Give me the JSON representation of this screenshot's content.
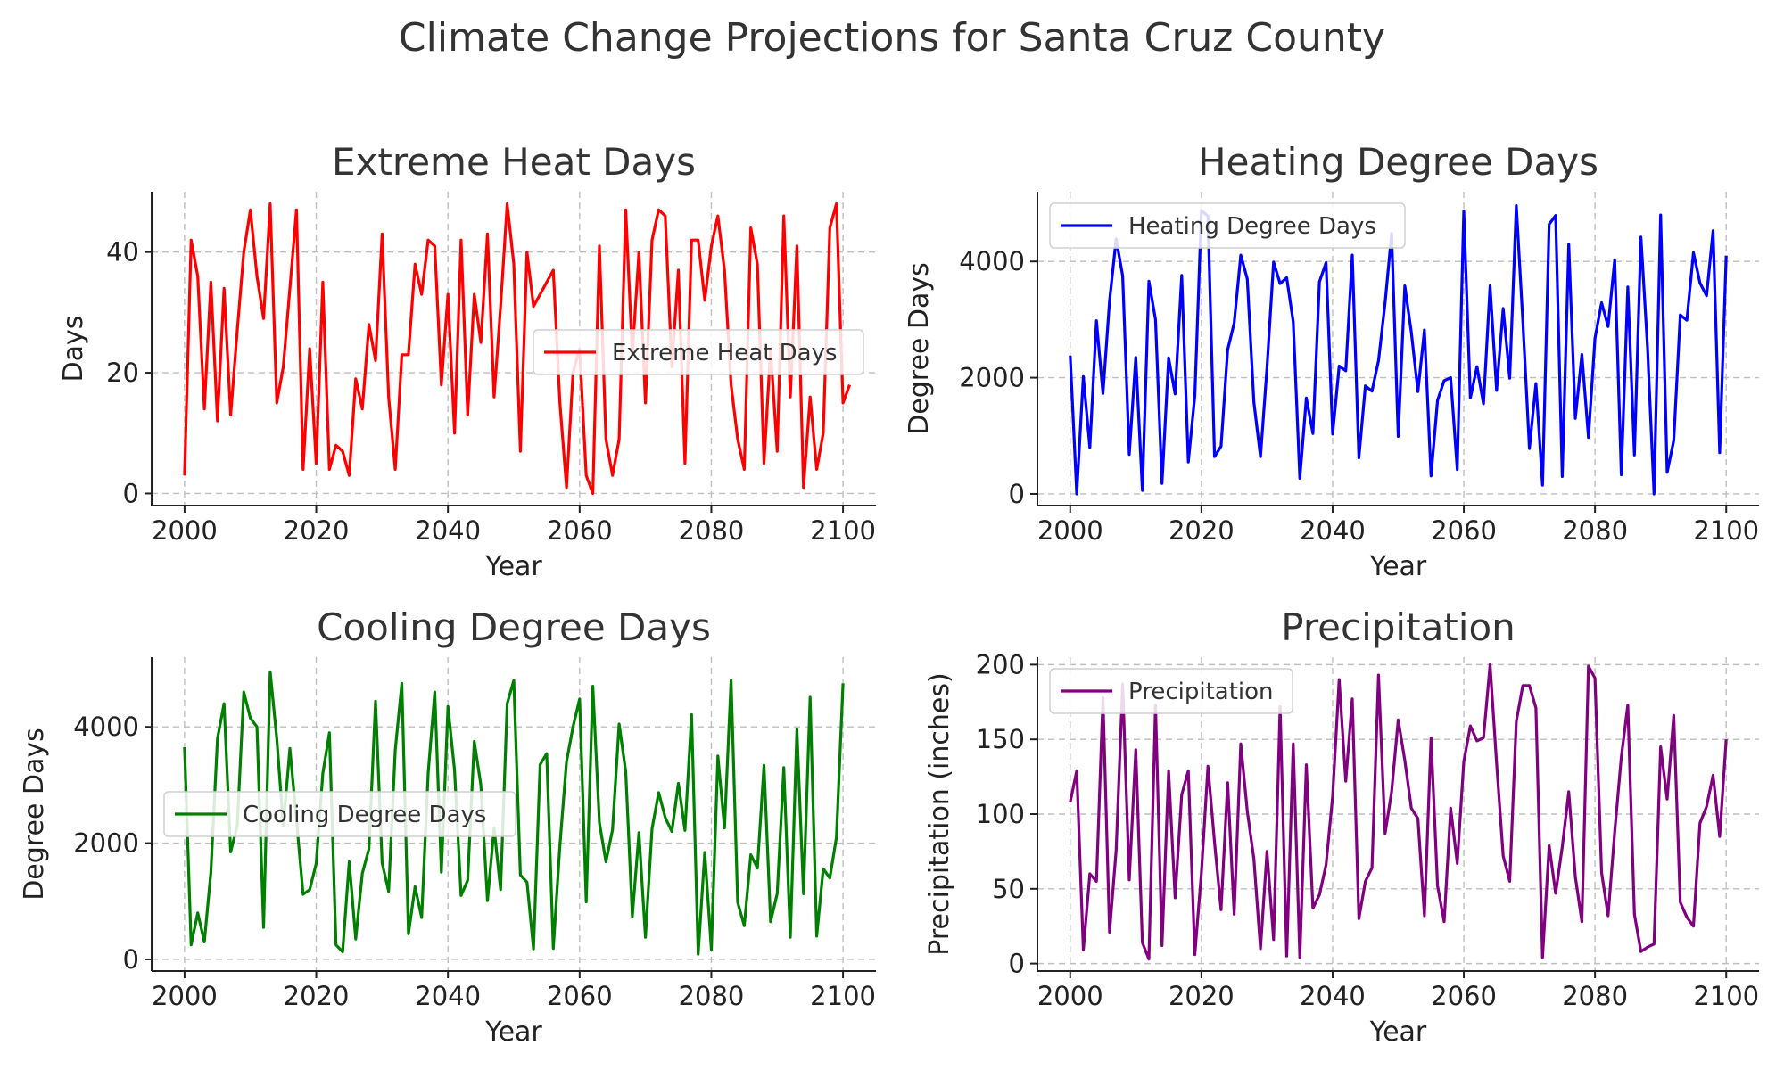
{
  "figure_title": "Climate Change Projections for Santa Cruz County",
  "chart_data": [
    {
      "type": "line",
      "title": "Extreme Heat Days",
      "xlabel": "Year",
      "ylabel": "Days",
      "xlim": [
        1995,
        2105
      ],
      "ylim": [
        -2,
        50
      ],
      "xticks": [
        2000,
        2020,
        2040,
        2060,
        2080,
        2100
      ],
      "yticks": [
        0,
        20,
        40
      ],
      "grid": true,
      "legend_position": "center-right",
      "series": [
        {
          "name": "Extreme Heat Days",
          "color": "#ff0000",
          "x_start": 2000,
          "x_step": 1,
          "values": [
            3,
            42,
            36,
            14,
            35,
            12,
            34,
            13,
            27,
            40,
            47,
            36,
            29,
            48,
            15,
            21,
            34,
            47,
            4,
            24,
            5,
            35,
            4,
            8,
            7,
            3,
            19,
            14,
            28,
            22,
            43,
            16,
            4,
            23,
            23,
            38,
            33,
            42,
            41,
            18,
            33,
            10,
            42,
            13,
            33,
            25,
            43,
            16,
            31,
            48,
            38,
            7,
            40,
            31,
            33,
            35,
            37,
            15,
            1,
            20,
            24,
            3,
            0,
            41,
            9,
            3,
            9,
            47,
            23,
            40,
            15,
            42,
            47,
            46,
            21,
            37,
            5,
            42,
            42,
            32,
            41,
            46,
            37,
            18,
            9,
            4,
            44,
            38,
            5,
            24,
            7,
            46,
            16,
            41,
            1,
            16,
            4,
            10,
            44,
            48,
            15,
            18
          ]
        }
      ]
    },
    {
      "type": "line",
      "title": "Heating Degree Days",
      "xlabel": "Year",
      "ylabel": "Degree Days",
      "xlim": [
        1995,
        2105
      ],
      "ylim": [
        -200,
        5200
      ],
      "xticks": [
        2000,
        2020,
        2040,
        2060,
        2080,
        2100
      ],
      "yticks": [
        0,
        2000,
        4000
      ],
      "grid": true,
      "legend_position": "upper-left",
      "series": [
        {
          "name": "Heating Degree Days",
          "color": "#0000ff",
          "x_start": 2000,
          "x_step": 1,
          "values": [
            2380,
            0,
            2020,
            800,
            2980,
            1730,
            3320,
            4390,
            3750,
            680,
            2350,
            60,
            3660,
            3000,
            180,
            2340,
            1720,
            3760,
            550,
            1690,
            4880,
            4780,
            640,
            820,
            2480,
            2940,
            4110,
            3700,
            1580,
            640,
            2170,
            3990,
            3620,
            3720,
            2960,
            270,
            1650,
            1040,
            3650,
            3980,
            1030,
            2200,
            2120,
            4110,
            620,
            1860,
            1770,
            2290,
            3290,
            4480,
            990,
            3580,
            2780,
            1760,
            2820,
            310,
            1610,
            1950,
            2000,
            420,
            4870,
            1650,
            2190,
            1550,
            3580,
            1780,
            3190,
            1990,
            4960,
            2980,
            780,
            1900,
            150,
            4640,
            4790,
            300,
            4300,
            1300,
            2400,
            970,
            2680,
            3290,
            2880,
            4030,
            330,
            3560,
            670,
            4420,
            2520,
            0,
            4800,
            370,
            920,
            3080,
            2990,
            4150,
            3630,
            3410,
            4530,
            710,
            4100
          ]
        }
      ]
    },
    {
      "type": "line",
      "title": "Cooling Degree Days",
      "xlabel": "Year",
      "ylabel": "Degree Days",
      "xlim": [
        1995,
        2105
      ],
      "ylim": [
        -200,
        5200
      ],
      "xticks": [
        2000,
        2020,
        2040,
        2060,
        2080,
        2100
      ],
      "yticks": [
        0,
        2000,
        4000
      ],
      "grid": true,
      "legend_position": "center-left",
      "series": [
        {
          "name": "Cooling Degree Days",
          "color": "#008000",
          "x_start": 2000,
          "x_step": 1,
          "values": [
            3650,
            250,
            800,
            300,
            1500,
            3800,
            4400,
            1850,
            2300,
            4600,
            4150,
            4000,
            550,
            4950,
            3800,
            2300,
            3630,
            2400,
            1120,
            1200,
            1650,
            3200,
            3900,
            250,
            130,
            1680,
            350,
            1480,
            1900,
            4440,
            1660,
            1170,
            3600,
            4750,
            440,
            1250,
            720,
            3200,
            4600,
            1500,
            4350,
            3250,
            1100,
            1360,
            3750,
            3000,
            1010,
            2260,
            1200,
            4400,
            4800,
            1450,
            1330,
            180,
            3350,
            3540,
            190,
            1960,
            3400,
            4000,
            4480,
            990,
            4700,
            2350,
            1680,
            2230,
            4050,
            3230,
            740,
            2180,
            380,
            2250,
            2870,
            2440,
            2200,
            3030,
            2220,
            4210,
            90,
            1840,
            170,
            3500,
            2260,
            4800,
            980,
            580,
            1800,
            1570,
            3340,
            650,
            1130,
            3300,
            380,
            3960,
            1130,
            4510,
            400,
            1560,
            1400,
            2100,
            4750
          ]
        }
      ]
    },
    {
      "type": "line",
      "title": "Precipitation",
      "xlabel": "Year",
      "ylabel": "Precipitation (inches)",
      "xlim": [
        1995,
        2105
      ],
      "ylim": [
        -5,
        205
      ],
      "xticks": [
        2000,
        2020,
        2040,
        2060,
        2080,
        2100
      ],
      "yticks": [
        0,
        50,
        100,
        150,
        200
      ],
      "grid": true,
      "legend_position": "upper-left",
      "series": [
        {
          "name": "Precipitation",
          "color": "#800080",
          "x_start": 2000,
          "x_step": 1,
          "values": [
            108,
            129,
            9,
            60,
            55,
            178,
            21,
            76,
            187,
            56,
            143,
            14,
            3,
            173,
            12,
            129,
            44,
            113,
            129,
            6,
            61,
            132,
            81,
            36,
            121,
            33,
            147,
            102,
            70,
            10,
            75,
            16,
            172,
            5,
            147,
            4,
            133,
            37,
            46,
            66,
            112,
            190,
            122,
            177,
            30,
            55,
            64,
            193,
            87,
            115,
            163,
            136,
            104,
            97,
            32,
            151,
            52,
            28,
            104,
            67,
            135,
            159,
            149,
            151,
            200,
            134,
            72,
            55,
            162,
            186,
            186,
            171,
            4,
            79,
            47,
            78,
            115,
            58,
            28,
            199,
            191,
            61,
            32,
            88,
            138,
            173,
            33,
            8,
            11,
            13,
            145,
            110,
            166,
            41,
            31,
            25,
            94,
            105,
            126,
            85,
            150
          ]
        }
      ]
    }
  ]
}
